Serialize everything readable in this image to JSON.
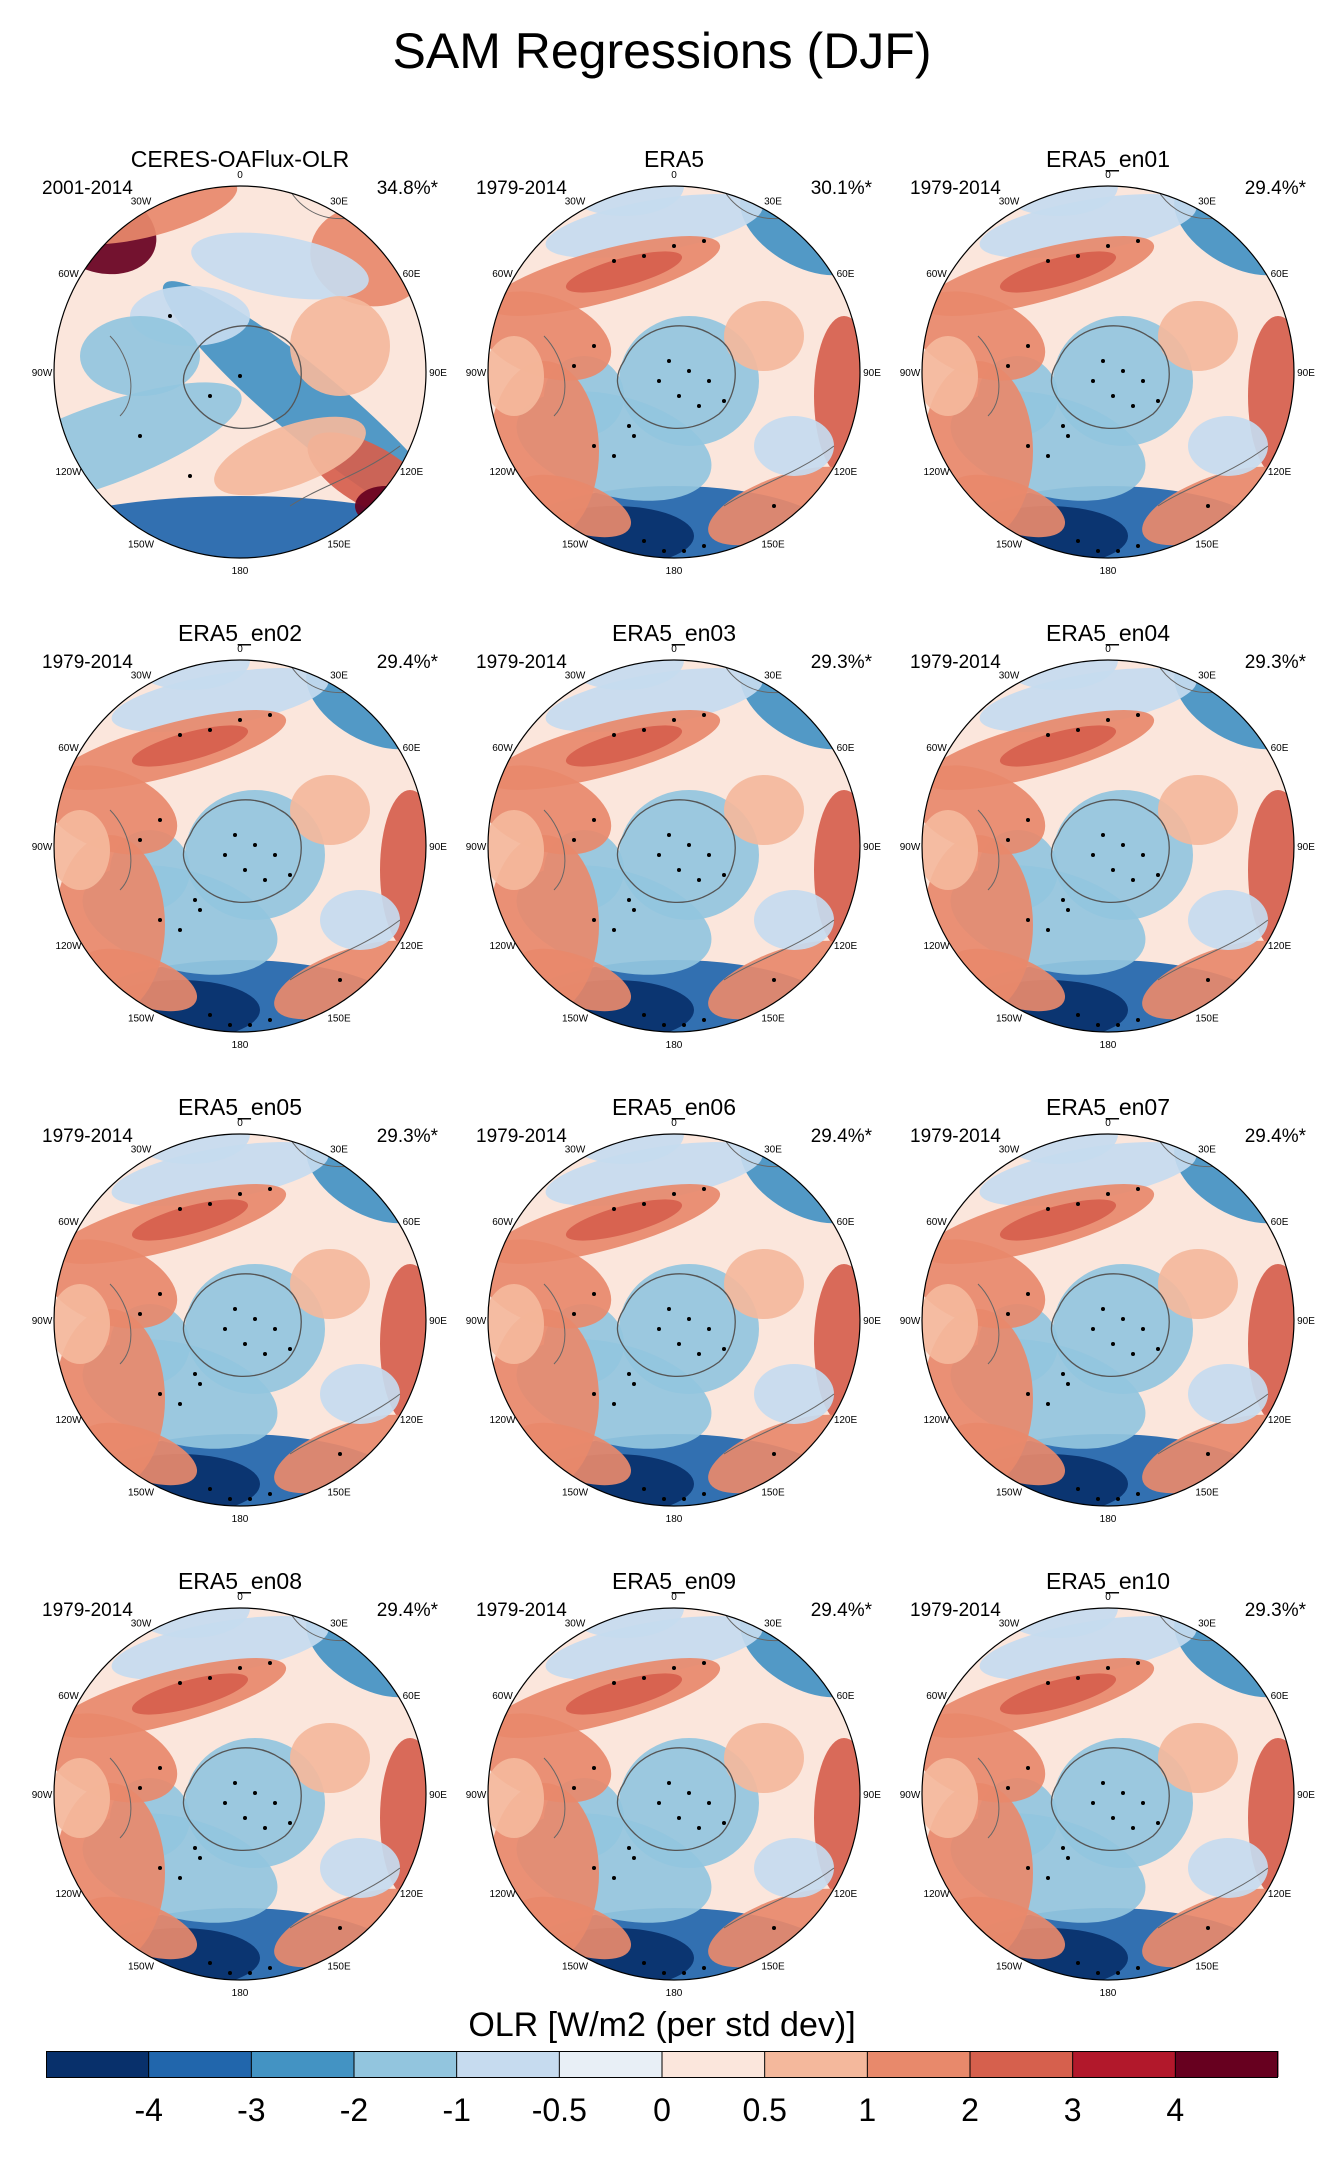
{
  "figure": {
    "title": "SAM Regressions (DJF)"
  },
  "panels": [
    {
      "title": "CERES-OAFlux-OLR",
      "period": "2001-2014",
      "pct": "34.8%*",
      "variant": "obs"
    },
    {
      "title": "ERA5",
      "period": "1979-2014",
      "pct": "30.1%*",
      "variant": "era"
    },
    {
      "title": "ERA5_en01",
      "period": "1979-2014",
      "pct": "29.4%*",
      "variant": "era"
    },
    {
      "title": "ERA5_en02",
      "period": "1979-2014",
      "pct": "29.4%*",
      "variant": "era"
    },
    {
      "title": "ERA5_en03",
      "period": "1979-2014",
      "pct": "29.3%*",
      "variant": "era"
    },
    {
      "title": "ERA5_en04",
      "period": "1979-2014",
      "pct": "29.3%*",
      "variant": "era"
    },
    {
      "title": "ERA5_en05",
      "period": "1979-2014",
      "pct": "29.3%*",
      "variant": "era"
    },
    {
      "title": "ERA5_en06",
      "period": "1979-2014",
      "pct": "29.4%*",
      "variant": "era"
    },
    {
      "title": "ERA5_en07",
      "period": "1979-2014",
      "pct": "29.4%*",
      "variant": "era"
    },
    {
      "title": "ERA5_en08",
      "period": "1979-2014",
      "pct": "29.4%*",
      "variant": "era"
    },
    {
      "title": "ERA5_en09",
      "period": "1979-2014",
      "pct": "29.4%*",
      "variant": "era"
    },
    {
      "title": "ERA5_en10",
      "period": "1979-2014",
      "pct": "29.3%*",
      "variant": "era"
    }
  ],
  "longitude_labels": [
    "0",
    "30E",
    "60E",
    "90E",
    "120E",
    "150E",
    "180",
    "150W",
    "120W",
    "90W",
    "60W",
    "30W"
  ],
  "colorbar": {
    "title": "OLR [W/m2 (per std dev)]",
    "tick_labels": [
      "-4",
      "-3",
      "-2",
      "-1",
      "-0.5",
      "0",
      "0.5",
      "1",
      "2",
      "3",
      "4"
    ],
    "colors": [
      "#08306b",
      "#2166ac",
      "#4393c3",
      "#92c5de",
      "#c6dbef",
      "#e8eff6",
      "#fbe6dc",
      "#f4b89c",
      "#e8896b",
      "#d6604d",
      "#b2182b",
      "#67001f"
    ]
  }
}
